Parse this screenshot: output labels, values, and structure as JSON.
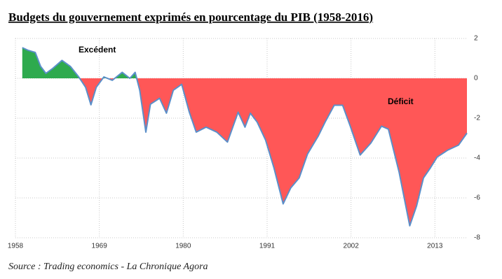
{
  "chart_data": {
    "type": "area",
    "title": "Budgets du gouvernement exprimés en pourcentage du PIB (1958-2016)",
    "source": "Source : Trading economics - La Chronique Agora",
    "annotations": [
      "Excédent",
      "Déficit"
    ],
    "x": [
      1958.9,
      1959.7,
      1960.6,
      1961.3,
      1962.0,
      1962.9,
      1964.1,
      1965.2,
      1966.3,
      1967.2,
      1967.9,
      1968.6,
      1969.6,
      1970.7,
      1972.0,
      1973.0,
      1973.7,
      1974.3,
      1975.1,
      1975.7,
      1976.9,
      1977.8,
      1978.7,
      1979.8,
      1980.8,
      1981.7,
      1983.0,
      1984.4,
      1985.8,
      1987.2,
      1988.1,
      1988.8,
      1989.7,
      1990.8,
      1991.9,
      1993.1,
      1994.1,
      1995.2,
      1996.3,
      1997.7,
      1998.6,
      1999.8,
      2000.9,
      2001.9,
      2003.2,
      2004.6,
      2006.0,
      2006.9,
      2008.3,
      2009.7,
      2010.6,
      2011.5,
      2012.4,
      2013.3,
      2014.7,
      2016.1,
      2017.2
    ],
    "series": [
      {
        "color": "#5b8fc9",
        "positive_color": "#2eaa4e",
        "negative_color": "#ff5757",
        "values": [
          1.54,
          1.4,
          1.3,
          0.6,
          0.25,
          0.5,
          0.9,
          0.6,
          0.07,
          -0.45,
          -1.33,
          -0.45,
          0.07,
          -0.1,
          0.3,
          0.0,
          0.3,
          -0.6,
          -2.7,
          -1.3,
          -1.0,
          -1.75,
          -0.6,
          -0.3,
          -1.7,
          -2.7,
          -2.45,
          -2.7,
          -3.2,
          -1.7,
          -2.45,
          -1.75,
          -2.2,
          -3.1,
          -4.5,
          -6.3,
          -5.5,
          -5.0,
          -3.8,
          -2.9,
          -2.2,
          -1.35,
          -1.35,
          -2.4,
          -3.85,
          -3.25,
          -2.4,
          -2.55,
          -4.7,
          -7.4,
          -6.4,
          -5.0,
          -4.5,
          -3.95,
          -3.6,
          -3.35,
          -2.75
        ]
      }
    ],
    "xlim": [
      1958,
      2017.2
    ],
    "ylim": [
      -8,
      2
    ],
    "xticks": [
      1958,
      1969,
      1980,
      1991,
      2002,
      2013
    ],
    "yticks": [
      2,
      0,
      -2,
      -4,
      -6,
      -8
    ],
    "grid": true
  }
}
